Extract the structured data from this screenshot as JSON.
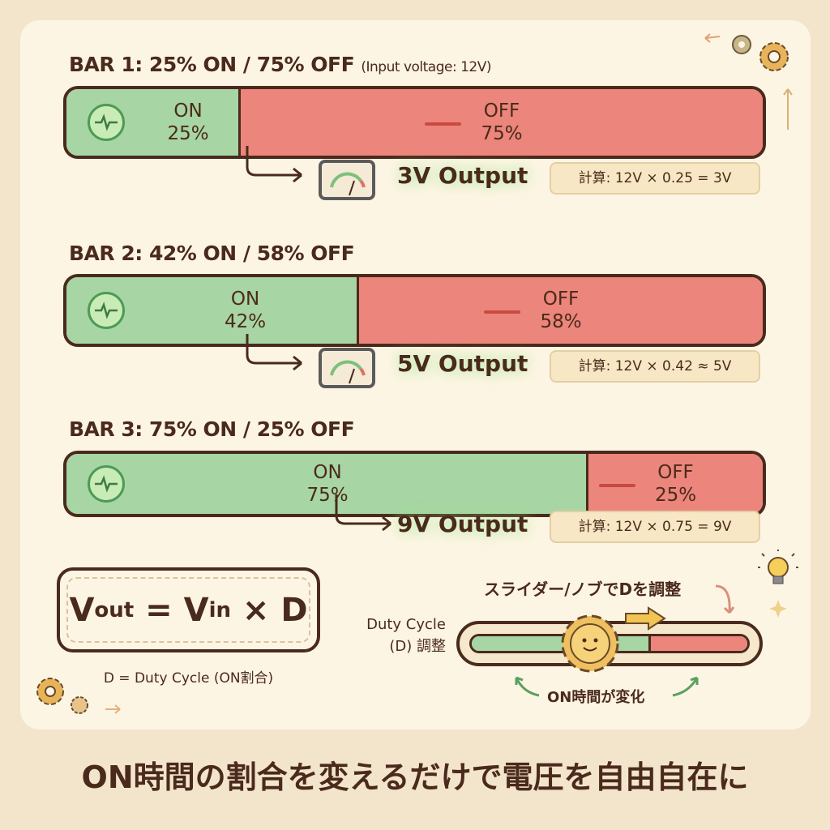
{
  "bars": [
    {
      "title": "BAR 1: 25% ON / 75% OFF",
      "note": "(Input voltage: 12V)",
      "on_label": "ON",
      "on_pct": "25%",
      "off_label": "OFF",
      "off_pct": "75%",
      "on_fraction": 0.25,
      "output": "3V Output",
      "calc": "計算: 12V × 0.25 = 3V"
    },
    {
      "title": "BAR 2: 42% ON / 58% OFF",
      "on_label": "ON",
      "on_pct": "42%",
      "off_label": "OFF",
      "off_pct": "58%",
      "on_fraction": 0.42,
      "output": "5V Output",
      "calc": "計算: 12V × 0.42 ≈ 5V"
    },
    {
      "title": "BAR 3: 75% ON / 25% OFF",
      "on_label": "ON",
      "on_pct": "75%",
      "off_label": "OFF",
      "off_pct": "25%",
      "on_fraction": 0.75,
      "output": "9V Output",
      "calc": "計算: 12V × 0.75 = 9V"
    }
  ],
  "formula": {
    "v": "V",
    "out": "out",
    "eq": " = ",
    "in": "in",
    "times": " × D",
    "note": "D = Duty Cycle (ON割合)"
  },
  "slider": {
    "label_line1": "Duty Cycle",
    "label_line2": "(D) 調整",
    "hint": "スライダー/ノブでDを調整",
    "change": "ON時間が変化",
    "on_fraction": 0.65
  },
  "caption": "ON時間の割合を変えるだけで電圧を自由自在に",
  "colors": {
    "on": "#a7d5a3",
    "off": "#ec857b",
    "outline": "#4a2a1c",
    "background": "#fdf5e4"
  },
  "icons": [
    "pulse-icon",
    "meter-icon",
    "gear-icon",
    "lightbulb-icon",
    "arrow-icon"
  ]
}
